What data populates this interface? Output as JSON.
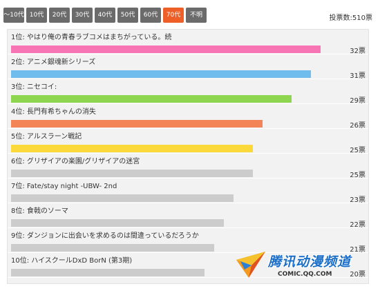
{
  "tabs": [
    {
      "label": "～10代",
      "active": false
    },
    {
      "label": "10代",
      "active": false
    },
    {
      "label": "20代",
      "active": false
    },
    {
      "label": "30代",
      "active": false
    },
    {
      "label": "40代",
      "active": false
    },
    {
      "label": "50代",
      "active": false
    },
    {
      "label": "60代",
      "active": false
    },
    {
      "label": "70代",
      "active": true
    },
    {
      "label": "不明",
      "active": false
    }
  ],
  "total_label": "投票数:510票",
  "max_votes": 32,
  "ranking": [
    {
      "label": "1位: やはり俺の青春ラブコメはまちがっている。続",
      "votes": 32,
      "votes_label": "32票",
      "color": "#f774b5"
    },
    {
      "label": "2位: アニメ銀魂新シリーズ",
      "votes": 31,
      "votes_label": "31票",
      "color": "#6fbdec"
    },
    {
      "label": "3位: ニセコイ:",
      "votes": 29,
      "votes_label": "29票",
      "color": "#8fd650"
    },
    {
      "label": "4位: 長門有希ちゃんの消失",
      "votes": 26,
      "votes_label": "26票",
      "color": "#f28458"
    },
    {
      "label": "5位: アルスラーン戦記",
      "votes": 25,
      "votes_label": "25票",
      "color": "#fbd93a"
    },
    {
      "label": "6位: グリザイアの楽園/グリザイアの迷宮",
      "votes": 25,
      "votes_label": "25票",
      "color": "#cccccc"
    },
    {
      "label": "7位: Fate/stay night -UBW- 2nd",
      "votes": 23,
      "votes_label": "23票",
      "color": "#cccccc"
    },
    {
      "label": "8位: 食戟のソーマ",
      "votes": 22,
      "votes_label": "22票",
      "color": "#cccccc"
    },
    {
      "label": "9位: ダンジョンに出会いを求めるのは間違っているだろうか",
      "votes": 21,
      "votes_label": "21票",
      "color": "#cccccc"
    },
    {
      "label": "10位: ハイスクールDxD BorN (第3期)",
      "votes": 20,
      "votes_label": "20票",
      "color": "#cccccc"
    }
  ],
  "watermark": {
    "title": "腾讯动漫频道",
    "url": "COMIC.QQ.COM"
  }
}
